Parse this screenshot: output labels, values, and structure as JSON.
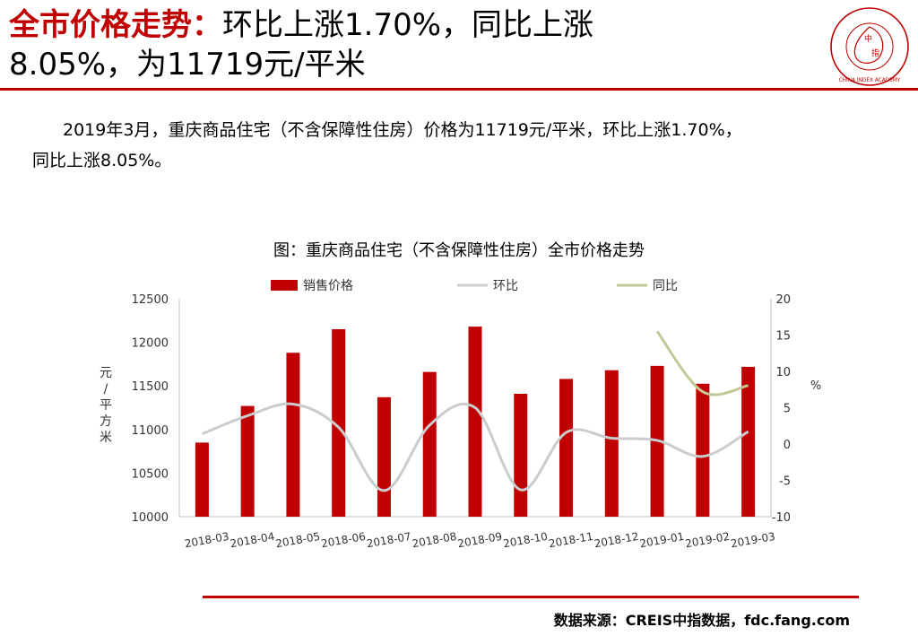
{
  "header": {
    "title_prefix": "全市价格走势：",
    "title_rest_line1": "环比上涨1.70%，同比上涨",
    "title_line2": "8.05%，为11719元/平米"
  },
  "logo": {
    "icon": "china-index-academy-seal-icon",
    "text": "CHINA INDEX ACADEMY"
  },
  "body": {
    "paragraph_line1": "2019年3月，重庆商品住宅（不含保障性住房）价格为11719元/平米，环比上涨1.70%，",
    "paragraph_line2": "同比上涨8.05%。"
  },
  "chart_title": "图：重庆商品住宅（不含保障性住房）全市价格走势",
  "source": "数据来源：CREIS中指数据，fdc.fang.com",
  "colors": {
    "accent": "#c00000",
    "bar": "#c00000",
    "mom_line": "#c8cdd0",
    "yoy_line": "#c3c896"
  },
  "chart_data": {
    "type": "bar",
    "categories": [
      "2018-03",
      "2018-04",
      "2018-05",
      "2018-06",
      "2018-07",
      "2018-08",
      "2018-09",
      "2018-10",
      "2018-11",
      "2018-12",
      "2019-01",
      "2019-02",
      "2019-03"
    ],
    "series": [
      {
        "name": "销售价格",
        "type": "bar",
        "axis": "left",
        "values": [
          10850,
          11270,
          11880,
          12150,
          11370,
          11660,
          12180,
          11410,
          11580,
          11680,
          11730,
          11525,
          11719
        ]
      },
      {
        "name": "环比",
        "type": "line",
        "axis": "right",
        "values": [
          1.4,
          3.9,
          5.5,
          2.3,
          -6.4,
          2.6,
          5.0,
          -6.3,
          1.6,
          0.8,
          0.5,
          -1.7,
          1.7
        ]
      },
      {
        "name": "同比",
        "type": "line",
        "axis": "right",
        "values": [
          null,
          null,
          null,
          null,
          null,
          null,
          null,
          null,
          null,
          null,
          15.5,
          7.2,
          8.05
        ]
      }
    ],
    "ylabel_left": "元/平方米",
    "ylabel_right": "%",
    "ylim_left": [
      10000,
      12500
    ],
    "yticks_left": [
      10000,
      10500,
      11000,
      11500,
      12000,
      12500
    ],
    "ylim_right": [
      -10,
      20
    ],
    "yticks_right": [
      -10,
      -5,
      0,
      5,
      10,
      15,
      20
    ],
    "legend_position": "top",
    "grid": false
  }
}
